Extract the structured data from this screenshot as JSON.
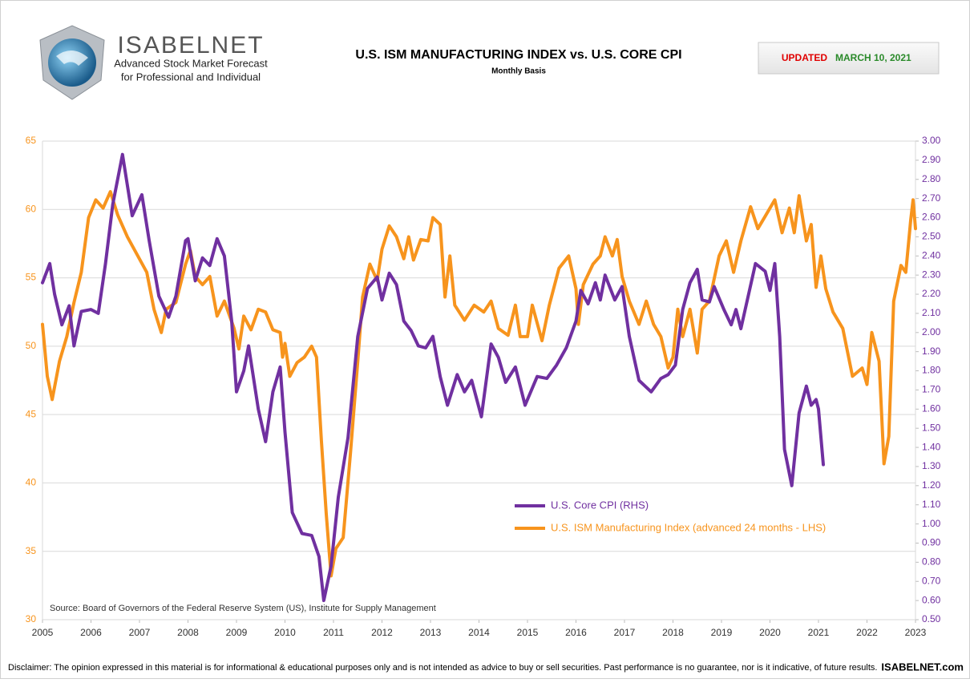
{
  "chart_data": {
    "type": "line",
    "title": "U.S. ISM MANUFACTURING INDEX vs. U.S. CORE CPI",
    "subtitle": "Monthly Basis",
    "brand": "ISABELNET",
    "tagline": [
      "Advanced Stock Market Forecast",
      "for Professional and Individual"
    ],
    "updated_label": "UPDATED",
    "updated_date": "MARCH 10, 2021",
    "source": "Source: Board of Governors of the Federal Reserve System (US), Institute for Supply Management",
    "disclaimer": "Disclaimer: The opinion expressed in this material is for informational & educational purposes only and is not intended as advice to buy or sell securities. Past performance is no guarantee, nor is it indicative, of future results.",
    "site": "ISABELNET.com",
    "legend": "lower center",
    "grid": true,
    "xlim": [
      2005,
      2023
    ],
    "xticks": [
      2005,
      2006,
      2007,
      2008,
      2009,
      2010,
      2011,
      2012,
      2013,
      2014,
      2015,
      2016,
      2017,
      2018,
      2019,
      2020,
      2021,
      2022,
      2023
    ],
    "ylim": [
      30,
      65
    ],
    "yticks": [
      30,
      35,
      40,
      45,
      50,
      55,
      60,
      65
    ],
    "y2lim": [
      0.5,
      3.0
    ],
    "y2ticks": [
      {
        "value": 0.5,
        "label": "0.50"
      },
      {
        "value": 0.6,
        "label": "0.60"
      },
      {
        "value": 0.7,
        "label": "0.70"
      },
      {
        "value": 0.8,
        "label": "0.80"
      },
      {
        "value": 0.9,
        "label": "0.90"
      },
      {
        "value": 1.0,
        "label": "1.00"
      },
      {
        "value": 1.1,
        "label": "1.10"
      },
      {
        "value": 1.2,
        "label": "1.20"
      },
      {
        "value": 1.3,
        "label": "1.30"
      },
      {
        "value": 1.4,
        "label": "1.40"
      },
      {
        "value": 1.5,
        "label": "1.50"
      },
      {
        "value": 1.6,
        "label": "1.60"
      },
      {
        "value": 1.7,
        "label": "1.70"
      },
      {
        "value": 1.8,
        "label": "1.80"
      },
      {
        "value": 1.9,
        "label": "1.90"
      },
      {
        "value": 2.0,
        "label": "2.00"
      },
      {
        "value": 2.1,
        "label": "2.10"
      },
      {
        "value": 2.2,
        "label": "2.20"
      },
      {
        "value": 2.3,
        "label": "2.30"
      },
      {
        "value": 2.4,
        "label": "2.40"
      },
      {
        "value": 2.5,
        "label": "2.50"
      },
      {
        "value": 2.6,
        "label": "2.60"
      },
      {
        "value": 2.7,
        "label": "2.70"
      },
      {
        "value": 2.8,
        "label": "2.80"
      },
      {
        "value": 2.9,
        "label": "2.90"
      },
      {
        "value": 3.0,
        "label": "3.00"
      }
    ],
    "series": [
      {
        "name": "U.S. Core CPI (RHS)",
        "color": "#7030a0",
        "axis": "y2",
        "x": [
          2005.0,
          2005.15,
          2005.25,
          2005.4,
          2005.55,
          2005.65,
          2005.8,
          2006.0,
          2006.15,
          2006.3,
          2006.45,
          2006.65,
          2006.85,
          2007.05,
          2007.2,
          2007.4,
          2007.6,
          2007.75,
          2007.95,
          2008.0,
          2008.15,
          2008.3,
          2008.45,
          2008.6,
          2008.75,
          2008.9,
          2009.0,
          2009.15,
          2009.25,
          2009.45,
          2009.6,
          2009.75,
          2009.9,
          2010.0,
          2010.15,
          2010.35,
          2010.55,
          2010.7,
          2010.8,
          2010.95,
          2011.1,
          2011.3,
          2011.5,
          2011.7,
          2011.9,
          2012.0,
          2012.15,
          2012.3,
          2012.45,
          2012.6,
          2012.75,
          2012.9,
          2013.05,
          2013.2,
          2013.35,
          2013.55,
          2013.7,
          2013.85,
          2014.05,
          2014.25,
          2014.4,
          2014.55,
          2014.75,
          2014.95,
          2015.2,
          2015.4,
          2015.6,
          2015.8,
          2016.0,
          2016.1,
          2016.25,
          2016.4,
          2016.5,
          2016.6,
          2016.8,
          2016.95,
          2017.1,
          2017.3,
          2017.55,
          2017.75,
          2017.9,
          2018.05,
          2018.2,
          2018.35,
          2018.5,
          2018.6,
          2018.75,
          2018.85,
          2019.05,
          2019.2,
          2019.3,
          2019.4,
          2019.55,
          2019.7,
          2019.9,
          2020.0,
          2020.1,
          2020.2,
          2020.3,
          2020.45,
          2020.6,
          2020.75,
          2020.85,
          2020.95,
          2021.0,
          2021.1
        ],
        "values": [
          2.26,
          2.36,
          2.2,
          2.04,
          2.14,
          1.93,
          2.11,
          2.12,
          2.1,
          2.36,
          2.67,
          2.93,
          2.61,
          2.72,
          2.48,
          2.19,
          2.08,
          2.19,
          2.48,
          2.49,
          2.27,
          2.39,
          2.35,
          2.49,
          2.4,
          2.06,
          1.69,
          1.8,
          1.93,
          1.6,
          1.43,
          1.69,
          1.82,
          1.48,
          1.06,
          0.95,
          0.94,
          0.83,
          0.6,
          0.78,
          1.14,
          1.45,
          1.98,
          2.23,
          2.29,
          2.17,
          2.31,
          2.25,
          2.06,
          2.01,
          1.93,
          1.92,
          1.98,
          1.77,
          1.62,
          1.78,
          1.69,
          1.75,
          1.56,
          1.94,
          1.87,
          1.74,
          1.82,
          1.62,
          1.77,
          1.76,
          1.83,
          1.92,
          2.06,
          2.22,
          2.15,
          2.26,
          2.17,
          2.3,
          2.17,
          2.24,
          1.98,
          1.75,
          1.69,
          1.76,
          1.78,
          1.83,
          2.12,
          2.26,
          2.33,
          2.17,
          2.16,
          2.24,
          2.12,
          2.04,
          2.12,
          2.02,
          2.19,
          2.36,
          2.32,
          2.22,
          2.36,
          1.98,
          1.39,
          1.2,
          1.58,
          1.72,
          1.62,
          1.65,
          1.6,
          1.31
        ]
      },
      {
        "name": "U.S. ISM Manufacturing Index (advanced 24 months - LHS)",
        "color": "#f7941d",
        "axis": "y",
        "x": [
          2005.0,
          2005.1,
          2005.2,
          2005.35,
          2005.5,
          2005.65,
          2005.8,
          2005.95,
          2006.1,
          2006.25,
          2006.4,
          2006.55,
          2006.75,
          2006.95,
          2007.15,
          2007.3,
          2007.45,
          2007.55,
          2007.75,
          2007.95,
          2008.05,
          2008.15,
          2008.3,
          2008.45,
          2008.6,
          2008.75,
          2008.95,
          2009.05,
          2009.15,
          2009.3,
          2009.45,
          2009.6,
          2009.75,
          2009.9,
          2009.95,
          2010.0,
          2010.1,
          2010.25,
          2010.4,
          2010.55,
          2010.65,
          2010.75,
          2010.85,
          2010.95,
          2011.05,
          2011.2,
          2011.35,
          2011.5,
          2011.6,
          2011.75,
          2011.9,
          2012.0,
          2012.15,
          2012.3,
          2012.45,
          2012.55,
          2012.65,
          2012.8,
          2012.95,
          2013.05,
          2013.2,
          2013.3,
          2013.4,
          2013.5,
          2013.7,
          2013.9,
          2014.1,
          2014.25,
          2014.4,
          2014.6,
          2014.75,
          2014.85,
          2015.0,
          2015.1,
          2015.3,
          2015.45,
          2015.65,
          2015.85,
          2016.0,
          2016.05,
          2016.15,
          2016.35,
          2016.5,
          2016.6,
          2016.75,
          2016.85,
          2016.95,
          2017.1,
          2017.3,
          2017.45,
          2017.6,
          2017.75,
          2017.9,
          2018.0,
          2018.1,
          2018.2,
          2018.35,
          2018.5,
          2018.6,
          2018.75,
          2018.95,
          2019.1,
          2019.25,
          2019.4,
          2019.6,
          2019.75,
          2019.9,
          2020.1,
          2020.25,
          2020.4,
          2020.5,
          2020.6,
          2020.75,
          2020.85,
          2020.95,
          2021.05,
          2021.15,
          2021.3,
          2021.5,
          2021.7,
          2021.9,
          2022.0,
          2022.1,
          2022.25,
          2022.35,
          2022.45,
          2022.55,
          2022.7,
          2022.8,
          2022.9,
          2022.95,
          2023.0
        ],
        "values": [
          51.6,
          47.8,
          46.1,
          48.9,
          50.7,
          53.2,
          55.4,
          59.4,
          60.7,
          60.1,
          61.3,
          59.6,
          58.0,
          56.7,
          55.4,
          52.7,
          51.0,
          52.7,
          53.2,
          56.0,
          57.0,
          55.1,
          54.5,
          55.1,
          52.2,
          53.3,
          51.3,
          49.8,
          52.2,
          51.2,
          52.7,
          52.5,
          51.2,
          51.0,
          49.2,
          50.2,
          47.8,
          48.8,
          49.2,
          50.0,
          49.2,
          43.1,
          37.8,
          33.2,
          35.2,
          36.0,
          42.2,
          48.9,
          53.6,
          56.0,
          54.8,
          57.1,
          58.8,
          58.0,
          56.4,
          58.0,
          56.3,
          57.8,
          57.7,
          59.4,
          58.9,
          53.6,
          56.6,
          53.0,
          51.9,
          53.0,
          52.5,
          53.3,
          51.3,
          50.8,
          53.0,
          50.7,
          50.7,
          53.0,
          50.4,
          53.0,
          55.7,
          56.6,
          54.2,
          51.6,
          54.5,
          56.0,
          56.6,
          58.0,
          56.6,
          57.8,
          55.1,
          53.3,
          51.6,
          53.3,
          51.6,
          50.7,
          48.4,
          49.2,
          52.7,
          50.7,
          52.7,
          49.5,
          52.7,
          53.3,
          56.6,
          57.7,
          55.4,
          57.7,
          60.2,
          58.6,
          59.5,
          60.7,
          58.3,
          60.1,
          58.3,
          61.0,
          57.7,
          58.9,
          54.3,
          56.6,
          54.2,
          52.5,
          51.3,
          47.8,
          48.4,
          47.2,
          51.0,
          48.9,
          41.4,
          43.4,
          53.3,
          55.9,
          55.4,
          59.2,
          60.7,
          58.6
        ]
      }
    ]
  }
}
